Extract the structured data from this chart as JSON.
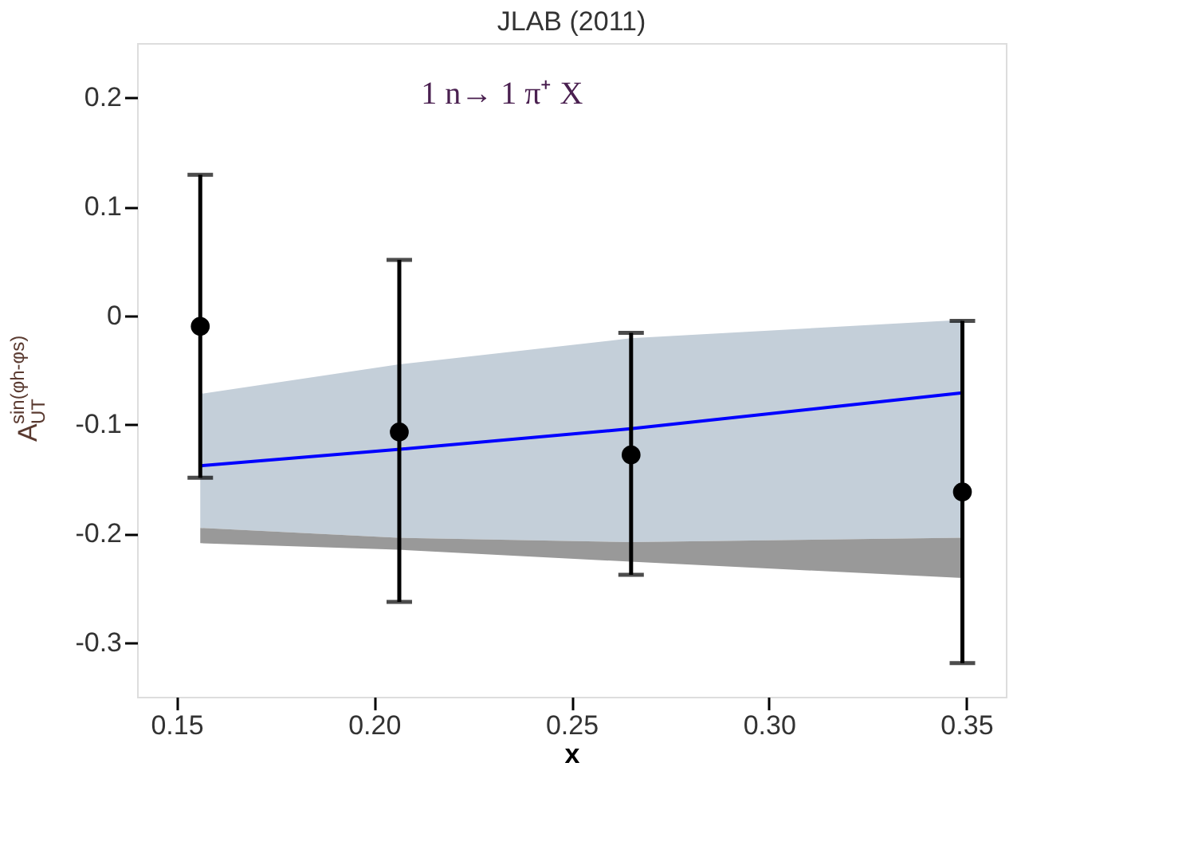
{
  "chart_data": {
    "type": "scatter",
    "title": "JLAB (2011)",
    "xlabel": "x",
    "ylabel": "A$_{UT}$$^{sin(φh-φs)}$",
    "annotations": [
      "1 n→ 1 π⁺ X"
    ],
    "xlim": [
      0.14,
      0.36
    ],
    "xticks": [
      {
        "value": 0.15,
        "label": "0.15"
      },
      {
        "value": 0.2,
        "label": "0.20"
      },
      {
        "value": 0.25,
        "label": "0.25"
      },
      {
        "value": 0.3,
        "label": "0.30"
      },
      {
        "value": 0.35,
        "label": "0.35"
      }
    ],
    "ylim": [
      -0.35,
      0.25
    ],
    "yticks": [
      -0.3,
      -0.2,
      -0.1,
      0,
      0.1,
      0.2
    ],
    "grid": false,
    "series": [
      {
        "type": "line",
        "color": "#0000ff",
        "x": [
          0.156,
          0.206,
          0.265,
          0.349
        ],
        "values": [
          -0.138,
          -0.123,
          -0.104,
          -0.071
        ],
        "lower": [
          -0.195,
          -0.204,
          -0.208,
          -0.204
        ],
        "upper": [
          -0.072,
          -0.045,
          -0.021,
          -0.004
        ],
        "line_style": "solid",
        "marker": "none"
      },
      {
        "type": "line",
        "color": "#999999",
        "x": [
          0.156,
          0.206,
          0.265,
          0.349
        ],
        "values": [
          null,
          null,
          null,
          null
        ],
        "upper": [
          -0.195,
          -0.204,
          -0.208,
          -0.204
        ],
        "lower": [
          -0.209,
          -0.215,
          -0.226,
          -0.241
        ]
      },
      {
        "color": "#000000",
        "x": [
          0.156,
          0.2064,
          0.2651,
          0.349
        ],
        "values": [
          -0.01,
          -0.107,
          -0.128,
          -0.162
        ],
        "errors": [
          [
            -0.149,
            0.129
          ],
          [
            -0.263,
            0.051
          ],
          [
            -0.238,
            -0.016
          ],
          [
            -0.319,
            -0.005
          ]
        ],
        "marker": "circle"
      }
    ]
  }
}
